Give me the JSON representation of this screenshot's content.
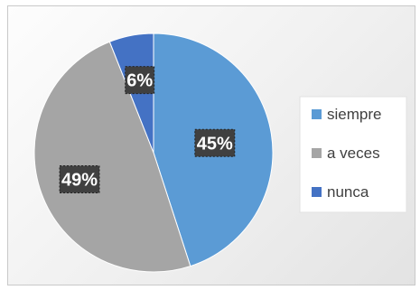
{
  "chart_data": {
    "type": "pie",
    "categories": [
      "siempre",
      "a veces",
      "nunca"
    ],
    "values": [
      45,
      49,
      6
    ],
    "data_labels": [
      "45%",
      "49%",
      "6%"
    ],
    "colors": [
      "#5b9bd5",
      "#a5a5a5",
      "#4472c4"
    ],
    "title": "",
    "legend_position": "right",
    "start_angle": "top (12 o'clock), clockwise"
  }
}
